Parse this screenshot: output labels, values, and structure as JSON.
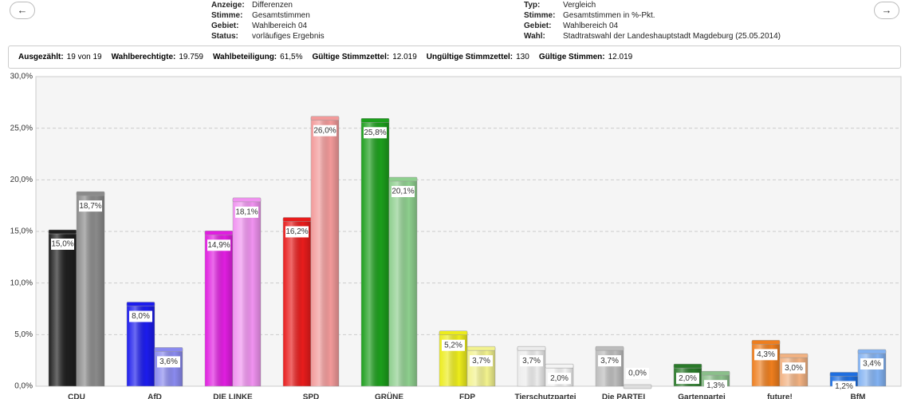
{
  "nav": {
    "prev": "←",
    "next": "→"
  },
  "header": {
    "left": [
      {
        "label": "Anzeige:",
        "value": "Differenzen"
      },
      {
        "label": "Stimme:",
        "value": "Gesamtstimmen"
      },
      {
        "label": "Gebiet:",
        "value": "Wahlbereich 04"
      },
      {
        "label": "Status:",
        "value": "vorläufiges Ergebnis"
      }
    ],
    "right": [
      {
        "label": "Typ:",
        "value": "Vergleich"
      },
      {
        "label": "Stimme:",
        "value": "Gesamtstimmen in %-Pkt."
      },
      {
        "label": "Gebiet:",
        "value": "Wahlbereich 04"
      },
      {
        "label": "Wahl:",
        "value": "Stadtratswahl der Landeshauptstadt Magdeburg (25.05.2014)"
      }
    ]
  },
  "stats": [
    {
      "label": "Ausgezählt:",
      "value": "19 von 19"
    },
    {
      "label": "Wahlberechtigte:",
      "value": "19.759"
    },
    {
      "label": "Wahlbeteiligung:",
      "value": "61,5%"
    },
    {
      "label": "Gültige Stimmzettel:",
      "value": "12.019"
    },
    {
      "label": "Ungültige Stimmzettel:",
      "value": "130"
    },
    {
      "label": "Gültige Stimmen:",
      "value": "12.019"
    }
  ],
  "chart_data": {
    "type": "bar",
    "categories": [
      "CDU",
      "AfD",
      "DIE LINKE",
      "SPD",
      "GRÜNE",
      "FDP",
      "Tierschutzpartei",
      "Die PARTEI",
      "Gartenpartei",
      "future!",
      "BfM"
    ],
    "series": [
      {
        "colors": [
          "#1e1e1e",
          "#1c1cec",
          "#e01ee0",
          "#e81c1c",
          "#1c9e1c",
          "#ecec1c",
          "#ececec",
          "#bcbcbc",
          "#2a7a2a",
          "#ee7e1e",
          "#1e6ee0"
        ],
        "values": [
          15.0,
          8.0,
          14.9,
          16.2,
          25.8,
          5.2,
          3.7,
          3.7,
          2.0,
          4.3,
          1.2
        ],
        "value_labels": [
          "15,0%",
          "8,0%",
          "14,9%",
          "16,2%",
          "25,8%",
          "5,2%",
          "3,7%",
          "3,7%",
          "2,0%",
          "4,3%",
          "1,2%"
        ]
      },
      {
        "colors": [
          "#8a8a8a",
          "#8a8aee",
          "#f092f0",
          "#f29a9a",
          "#8ecf8e",
          "#f2f28e",
          "#f4f4f4",
          "#dedede",
          "#8abf8a",
          "#f2b282",
          "#82b2f2"
        ],
        "values": [
          18.7,
          3.6,
          18.1,
          26.0,
          20.1,
          3.7,
          2.0,
          0.0,
          1.3,
          3.0,
          3.4
        ],
        "value_labels": [
          "18,7%",
          "3,6%",
          "18,1%",
          "26,0%",
          "20,1%",
          "3,7%",
          "2,0%",
          "0,0%",
          "1,3%",
          "3,0%",
          "3,4%"
        ]
      }
    ],
    "ylim": [
      0,
      30
    ],
    "yticks": [
      {
        "value": 0,
        "label": "0,0%"
      },
      {
        "value": 5,
        "label": "5,0%"
      },
      {
        "value": 10,
        "label": "10,0%"
      },
      {
        "value": 15,
        "label": "15,0%"
      },
      {
        "value": 20,
        "label": "20,0%"
      },
      {
        "value": 25,
        "label": "25,0%"
      },
      {
        "value": 30,
        "label": "30,0%"
      }
    ],
    "grid": true
  }
}
